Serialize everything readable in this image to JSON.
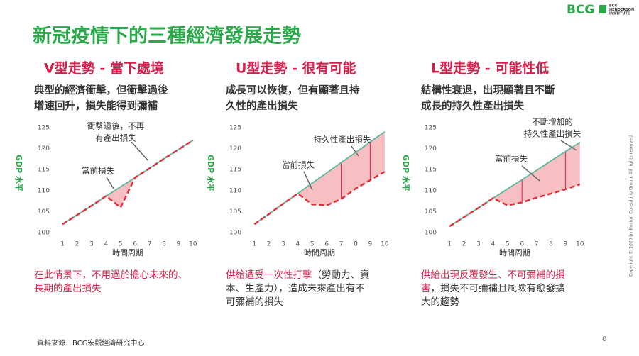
{
  "title": "新冠疫情下的三種經濟發展走勢",
  "logo": "BCG",
  "institute": [
    "BCG",
    "HENDERSON",
    "INSTITUTE"
  ],
  "copyright": "Copyright © 2020 by Boston Consulting Group. All rights reserved.",
  "source": "資料來源：BCG宏觀經濟研究中心",
  "page_number": "0",
  "panels": [
    {
      "heading": "V型走勢 - 當下處境",
      "desc": [
        "典型的經濟衝擊，但衝擊過後",
        "增速回升，損失能得到彌補"
      ],
      "note": {
        "red": [
          "在此情景下，不用過於擔心未來的、",
          "長期的產出損失"
        ],
        "black": []
      }
    },
    {
      "heading": "U型走勢 - 很有可能",
      "desc": [
        "成長可以恢復，但有顯著且持",
        "久性的產出損失"
      ],
      "note": {
        "red": [
          "供給遭受一次性打擊"
        ],
        "black": [
          "（勞動力、資",
          "本、生產力），造成未來產出有不",
          "可彌補的損失"
        ]
      }
    },
    {
      "heading": "L型走勢 - 可能性低",
      "desc": [
        "結構性衰退，出現顯著且不斷",
        "成長的持久性產出損失"
      ],
      "note": {
        "red": [
          "供給出現反覆發生、不可彌補的損",
          "害"
        ],
        "black": [
          "，損失不可彌補且風險有愈發擴",
          "大的趨勢"
        ]
      }
    }
  ],
  "chart_data": [
    {
      "type": "line",
      "ylabel": "GDP 水平",
      "xlabel": "時間周期",
      "x": [
        1,
        2,
        3,
        4,
        5,
        6,
        7,
        8,
        9,
        10
      ],
      "xlim": [
        0.5,
        10.5
      ],
      "xticks": [
        1,
        2,
        3,
        4,
        5,
        6,
        7,
        8,
        9,
        10
      ],
      "ylim": [
        100,
        125
      ],
      "yticks": [
        100,
        105,
        110,
        115,
        120,
        125
      ],
      "annotations": [
        [
          "衝擊過後，不再",
          "有產出損失"
        ],
        [
          "當前損失"
        ]
      ],
      "series": [
        {
          "color": "#5bb89a",
          "values": [
            102,
            104.2,
            106.4,
            108.7,
            110.9,
            113.1,
            115.3,
            117.6,
            119.8,
            122
          ]
        },
        {
          "color": "#e0303a",
          "dashed": true,
          "values": [
            102,
            104.2,
            106.4,
            108.7,
            106,
            113.1,
            115.3,
            117.6,
            119.8,
            122
          ]
        }
      ]
    },
    {
      "type": "line",
      "ylabel": "GDP 水平",
      "xlabel": "時間周期",
      "x": [
        1,
        2,
        3,
        4,
        5,
        6,
        7,
        8,
        9,
        10
      ],
      "xlim": [
        0.5,
        10.5
      ],
      "xticks": [
        1,
        2,
        3,
        4,
        5,
        6,
        7,
        8,
        9,
        10
      ],
      "ylim": [
        100,
        125
      ],
      "yticks": [
        100,
        105,
        110,
        115,
        120,
        125
      ],
      "annotations": [
        [
          "持久性產出損失"
        ],
        [
          "當前損失"
        ]
      ],
      "series": [
        {
          "color": "#5bb89a",
          "values": [
            102,
            104.4,
            106.9,
            109.3,
            111.8,
            114.2,
            116.7,
            119.1,
            121.6,
            124
          ]
        },
        {
          "color": "#e0303a",
          "dashed": true,
          "values": [
            102,
            104.4,
            106.9,
            109.3,
            106.7,
            106.5,
            108,
            110.5,
            112.5,
            114.5
          ]
        }
      ]
    },
    {
      "type": "line",
      "ylabel": "GDP 水平",
      "xlabel": "時間周期",
      "x": [
        1,
        2,
        3,
        4,
        5,
        6,
        7,
        8,
        9,
        10
      ],
      "xlim": [
        0.5,
        10.5
      ],
      "xticks": [
        1,
        2,
        3,
        4,
        5,
        6,
        7,
        8,
        9,
        10
      ],
      "ylim": [
        100,
        125
      ],
      "yticks": [
        100,
        105,
        110,
        115,
        120,
        125
      ],
      "annotations": [
        [
          "不斷增加的",
          "持久性產出損失"
        ],
        [
          "當前損失"
        ]
      ],
      "series": [
        {
          "color": "#5bb89a",
          "values": [
            101.5,
            103.7,
            105.9,
            108.2,
            110.4,
            112.6,
            114.8,
            117.1,
            119.3,
            121.5
          ]
        },
        {
          "color": "#e0303a",
          "dashed": true,
          "values": [
            101.5,
            103.7,
            105.9,
            108.2,
            106.5,
            107.2,
            108.3,
            109.3,
            110.3,
            111.5
          ]
        }
      ]
    }
  ]
}
